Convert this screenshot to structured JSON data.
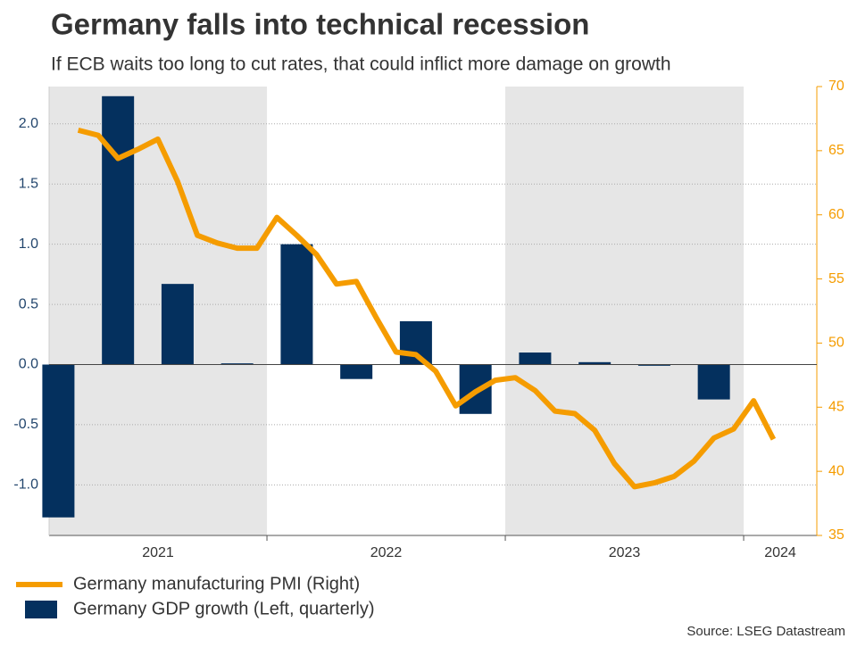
{
  "chart_data": {
    "type": "bar-line",
    "title": "Germany falls into technical recession",
    "subtitle": "If ECB waits too long to cut rates, that could inflict more damage on growth",
    "source": "Source: LSEG Datastream",
    "xlim": [
      2021.086,
      2024.307
    ],
    "xticks": [
      2021,
      2022,
      2023,
      2024
    ],
    "ylim": [
      -1.42,
      2.31
    ],
    "yticks": [
      {
        "value": -1.0,
        "label": "-1.0"
      },
      -0.5,
      {
        "value": 0.0,
        "label": "0.0"
      },
      0.5,
      {
        "value": 1.0,
        "label": "1.0"
      },
      1.5,
      {
        "value": 2.0,
        "label": "2.0"
      }
    ],
    "y2lim": [
      35,
      70
    ],
    "y2ticks": [
      35,
      40,
      45,
      50,
      55,
      60,
      65,
      70
    ],
    "grid": true,
    "shaded_alternate_years": true,
    "series": [
      {
        "name": "Germany manufacturing PMI (Right)",
        "type": "line",
        "axis": "y2",
        "color": "#f59c00",
        "x": [
          2021.208,
          2021.292,
          2021.375,
          2021.458,
          2021.542,
          2021.625,
          2021.708,
          2021.792,
          2021.875,
          2021.958,
          2022.042,
          2022.125,
          2022.208,
          2022.292,
          2022.375,
          2022.458,
          2022.542,
          2022.625,
          2022.708,
          2022.792,
          2022.875,
          2022.958,
          2023.042,
          2023.125,
          2023.208,
          2023.292,
          2023.375,
          2023.458,
          2023.542,
          2023.625,
          2023.708,
          2023.792,
          2023.875,
          2023.958,
          2024.042,
          2024.125
        ],
        "values": [
          66.6,
          66.2,
          64.4,
          65.1,
          65.9,
          62.6,
          58.4,
          57.8,
          57.4,
          57.4,
          59.8,
          58.4,
          56.9,
          54.6,
          54.8,
          52.0,
          49.3,
          49.1,
          47.8,
          45.1,
          46.2,
          47.1,
          47.3,
          46.3,
          44.7,
          44.5,
          43.2,
          40.6,
          38.8,
          39.1,
          39.6,
          40.8,
          42.6,
          43.3,
          45.5,
          42.5
        ]
      },
      {
        "name": "Germany GDP growth (Left, quarterly)",
        "type": "bar",
        "axis": "y",
        "color": "#04305e",
        "x": [
          2021.125,
          2021.375,
          2021.625,
          2021.875,
          2022.125,
          2022.375,
          2022.625,
          2022.875,
          2023.125,
          2023.375,
          2023.625,
          2023.875
        ],
        "values": [
          -1.27,
          2.23,
          0.67,
          0.01,
          1.0,
          -0.12,
          0.36,
          -0.41,
          0.1,
          0.02,
          -0.01,
          -0.29
        ]
      }
    ]
  }
}
